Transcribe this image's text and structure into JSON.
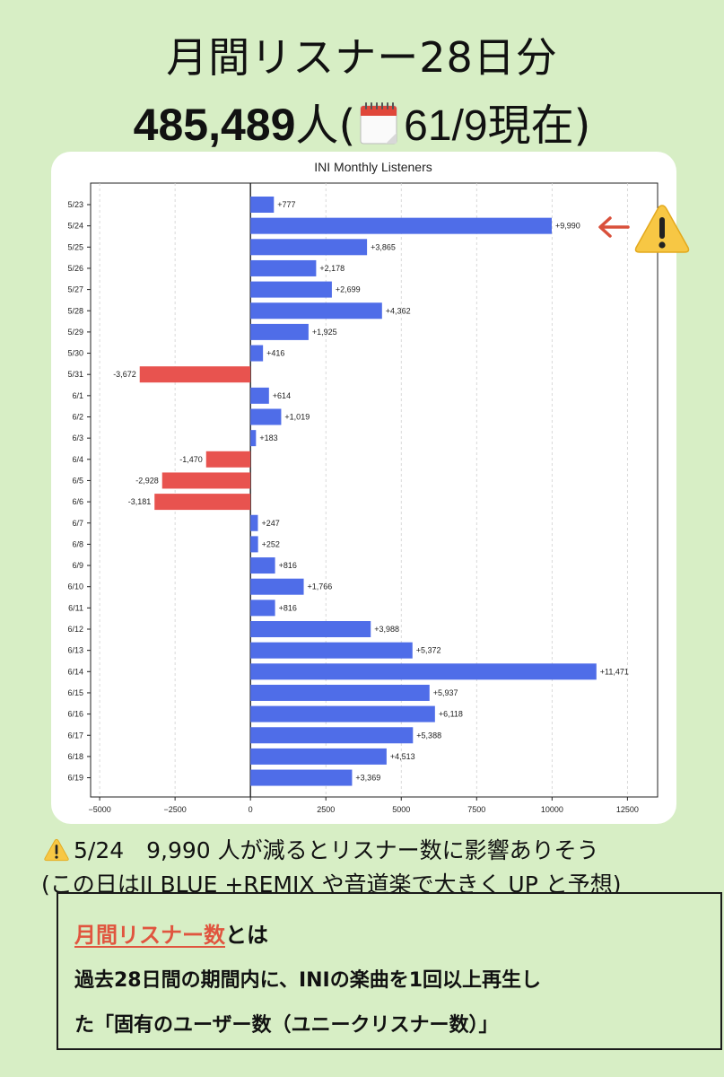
{
  "header": {
    "title_line1": "月間リスナー28日分",
    "listener_count": "485,489",
    "unit": "人",
    "paren_open": "(",
    "date_text": "61/9",
    "now_text": "現在)",
    "calendar_icon": "calendar-icon"
  },
  "chart_data": {
    "type": "bar",
    "orientation": "horizontal",
    "title": "INI Monthly Listeners",
    "categories": [
      "5/23",
      "5/24",
      "5/25",
      "5/26",
      "5/27",
      "5/28",
      "5/29",
      "5/30",
      "5/31",
      "6/1",
      "6/2",
      "6/3",
      "6/4",
      "6/5",
      "6/6",
      "6/7",
      "6/8",
      "6/9",
      "6/10",
      "6/11",
      "6/12",
      "6/13",
      "6/14",
      "6/15",
      "6/16",
      "6/17",
      "6/18",
      "6/19"
    ],
    "values": [
      777,
      9990,
      3865,
      2178,
      2699,
      4362,
      1925,
      416,
      -3672,
      614,
      1019,
      183,
      -1470,
      -2928,
      -3181,
      247,
      252,
      816,
      1766,
      816,
      3988,
      5372,
      11471,
      5937,
      6118,
      5388,
      4513,
      3369
    ],
    "labels": [
      "+777",
      "+9,990",
      "+3,865",
      "+2,178",
      "+2,699",
      "+4,362",
      "+1,925",
      "+416",
      "-3,672",
      "+614",
      "+1,019",
      "+183",
      "-1,470",
      "-2,928",
      "-3,181",
      "+247",
      "+252",
      "+816",
      "+1,766",
      "+816",
      "+3,988",
      "+5,372",
      "+11,471",
      "+5,937",
      "+6,118",
      "+5,388",
      "+4,513",
      "+3,369"
    ],
    "xlim": [
      -5300,
      13500
    ],
    "xticks": [
      -5000,
      -2500,
      0,
      2500,
      5000,
      7500,
      10000,
      12500
    ],
    "xtick_labels": [
      "−5000",
      "−2500",
      "0",
      "2500",
      "5000",
      "7500",
      "10000",
      "12500"
    ],
    "grid": "vertical dashed",
    "positive_color": "#4f6de8",
    "negative_color": "#e8534f"
  },
  "annotation": {
    "arrow_color": "#d9503b",
    "icon": "warning-icon"
  },
  "notes": {
    "line1": "5/24　9,990 人が減るとリスナー数に影響ありそう",
    "line2": "(この日はJI BLUE +REMIX や音道楽で大きく UP と予想)"
  },
  "definition": {
    "term": "月間リスナー数",
    "term_suffix": "とは",
    "line2": "過去28日間の期間内に、INIの楽曲を1回以上再生し",
    "line3": "た「固有のユーザー数（ユニークリスナー数）」"
  }
}
